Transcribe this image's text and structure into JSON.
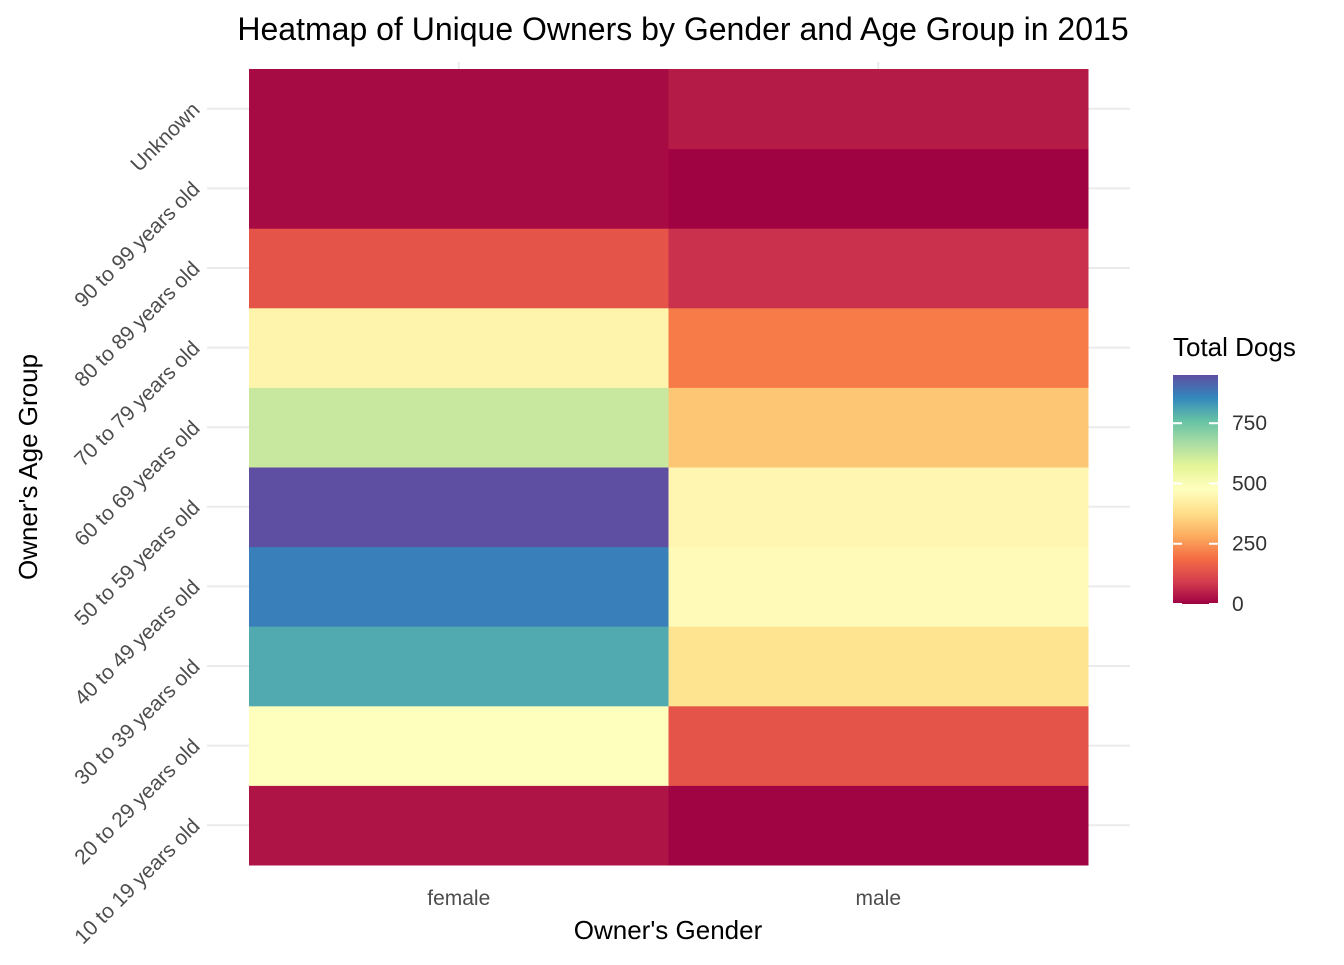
{
  "chart_data": {
    "type": "heatmap",
    "title": "Heatmap of Unique Owners by Gender and Age Group in 2015",
    "xlabel": "Owner's Gender",
    "ylabel": "Owner's Age Group",
    "x_categories": [
      "female",
      "male"
    ],
    "y_categories": [
      "10 to 19 years old",
      "20 to 29 years old",
      "30 to 39 years old",
      "40 to 49 years old",
      "50 to 59 years old",
      "60 to 69 years old",
      "70 to 79 years old",
      "80 to 89 years old",
      "90 to 99 years old",
      "Unknown"
    ],
    "cells": [
      {
        "x": "female",
        "y": "10 to 19 years old",
        "value": 30
      },
      {
        "x": "male",
        "y": "10 to 19 years old",
        "value": 5
      },
      {
        "x": "female",
        "y": "20 to 29 years old",
        "value": 480
      },
      {
        "x": "male",
        "y": "20 to 29 years old",
        "value": 140
      },
      {
        "x": "female",
        "y": "30 to 39 years old",
        "value": 800
      },
      {
        "x": "male",
        "y": "30 to 39 years old",
        "value": 390
      },
      {
        "x": "female",
        "y": "40 to 49 years old",
        "value": 870
      },
      {
        "x": "male",
        "y": "40 to 49 years old",
        "value": 460
      },
      {
        "x": "female",
        "y": "50 to 59 years old",
        "value": 950
      },
      {
        "x": "male",
        "y": "50 to 59 years old",
        "value": 450
      },
      {
        "x": "female",
        "y": "60 to 69 years old",
        "value": 620
      },
      {
        "x": "male",
        "y": "60 to 69 years old",
        "value": 330
      },
      {
        "x": "female",
        "y": "70 to 79 years old",
        "value": 440
      },
      {
        "x": "male",
        "y": "70 to 79 years old",
        "value": 210
      },
      {
        "x": "female",
        "y": "80 to 89 years old",
        "value": 140
      },
      {
        "x": "male",
        "y": "80 to 89 years old",
        "value": 75
      },
      {
        "x": "female",
        "y": "90 to 99 years old",
        "value": 15
      },
      {
        "x": "male",
        "y": "90 to 99 years old",
        "value": 3
      },
      {
        "x": "female",
        "y": "Unknown",
        "value": 15
      },
      {
        "x": "male",
        "y": "Unknown",
        "value": 40
      }
    ],
    "legend": {
      "title": "Total Dogs",
      "ticks": [
        0,
        250,
        500,
        750
      ],
      "range": [
        0,
        950
      ],
      "palette": "Spectral",
      "placement": "right"
    },
    "grid": true
  }
}
